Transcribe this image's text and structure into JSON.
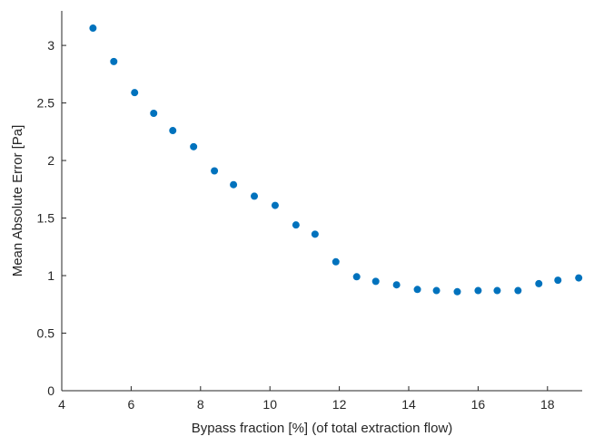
{
  "chart_data": {
    "type": "scatter",
    "title": "",
    "xlabel": "Bypass fraction [%] (of total extraction flow)",
    "ylabel": "Mean Absolute Error [Pa]",
    "xlim": [
      4,
      19
    ],
    "ylim": [
      0,
      3.3
    ],
    "grid": false,
    "x_ticks": [
      4,
      6,
      8,
      10,
      12,
      14,
      16,
      18
    ],
    "y_ticks": [
      0,
      0.5,
      1,
      1.5,
      2,
      2.5,
      3
    ],
    "x_tick_labels": [
      "4",
      "6",
      "8",
      "10",
      "12",
      "14",
      "16",
      "18"
    ],
    "y_tick_labels": [
      "0",
      "0.5",
      "1",
      "1.5",
      "2",
      "2.5",
      "3"
    ],
    "marker_color": "#0072BD",
    "series": [
      {
        "x": [
          4.9,
          5.5,
          6.1,
          6.65,
          7.2,
          7.8,
          8.4,
          8.95,
          9.55,
          10.15,
          10.75,
          11.3,
          11.9,
          12.5,
          13.05,
          13.65,
          14.25,
          14.8,
          15.4,
          16.0,
          16.55,
          17.15,
          17.75,
          18.3,
          18.9
        ],
        "y": [
          3.15,
          2.86,
          2.59,
          2.41,
          2.26,
          2.12,
          1.91,
          1.79,
          1.69,
          1.61,
          1.44,
          1.36,
          1.12,
          0.99,
          0.95,
          0.92,
          0.88,
          0.87,
          0.86,
          0.87,
          0.87,
          0.87,
          0.93,
          0.96,
          0.98
        ]
      }
    ]
  }
}
